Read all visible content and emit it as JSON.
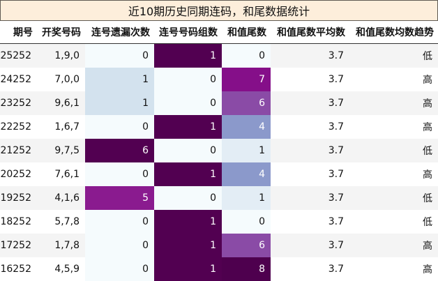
{
  "title": "近10期历史同期连码，和尾数据统计",
  "headers": [
    "期号",
    "开奖号码",
    "连号遗漏次数",
    "连号号码组数",
    "和值尾数",
    "和值尾数平均数",
    "和值尾数均数趋势"
  ],
  "rows": [
    {
      "issue": "25252",
      "numbers": "1,9,0",
      "gap": "0",
      "groups": "1",
      "tail": "0",
      "avg": "3.7",
      "trend": "低"
    },
    {
      "issue": "24252",
      "numbers": "7,0,0",
      "gap": "1",
      "groups": "0",
      "tail": "7",
      "avg": "3.7",
      "trend": "高"
    },
    {
      "issue": "23252",
      "numbers": "9,6,1",
      "gap": "1",
      "groups": "0",
      "tail": "6",
      "avg": "3.7",
      "trend": "高"
    },
    {
      "issue": "22252",
      "numbers": "1,6,7",
      "gap": "0",
      "groups": "1",
      "tail": "4",
      "avg": "3.7",
      "trend": "高"
    },
    {
      "issue": "21252",
      "numbers": "9,7,5",
      "gap": "6",
      "groups": "0",
      "tail": "1",
      "avg": "3.7",
      "trend": "低"
    },
    {
      "issue": "20252",
      "numbers": "7,6,1",
      "gap": "0",
      "groups": "1",
      "tail": "4",
      "avg": "3.7",
      "trend": "高"
    },
    {
      "issue": "19252",
      "numbers": "4,1,6",
      "gap": "5",
      "groups": "0",
      "tail": "1",
      "avg": "3.7",
      "trend": "低"
    },
    {
      "issue": "18252",
      "numbers": "5,7,8",
      "gap": "0",
      "groups": "1",
      "tail": "0",
      "avg": "3.7",
      "trend": "低"
    },
    {
      "issue": "17252",
      "numbers": "1,7,8",
      "gap": "0",
      "groups": "1",
      "tail": "6",
      "avg": "3.7",
      "trend": "高"
    },
    {
      "issue": "16252",
      "numbers": "4,5,9",
      "gap": "0",
      "groups": "1",
      "tail": "8",
      "avg": "3.7",
      "trend": "高"
    }
  ],
  "colors": {
    "title_bg": "#fdeedb",
    "gap": {
      "0": "#f5fbfd",
      "1": "#d3e2ee",
      "5": "#8a1b8f",
      "6": "#520051"
    },
    "groups": {
      "0": "#f5fbfd",
      "1": "#520051"
    },
    "tail": {
      "0": "#f5fbfd",
      "1": "#e3edf5",
      "4": "#8b99cb",
      "6": "#8a4ba6",
      "7": "#850f89",
      "8": "#4e004e"
    }
  }
}
